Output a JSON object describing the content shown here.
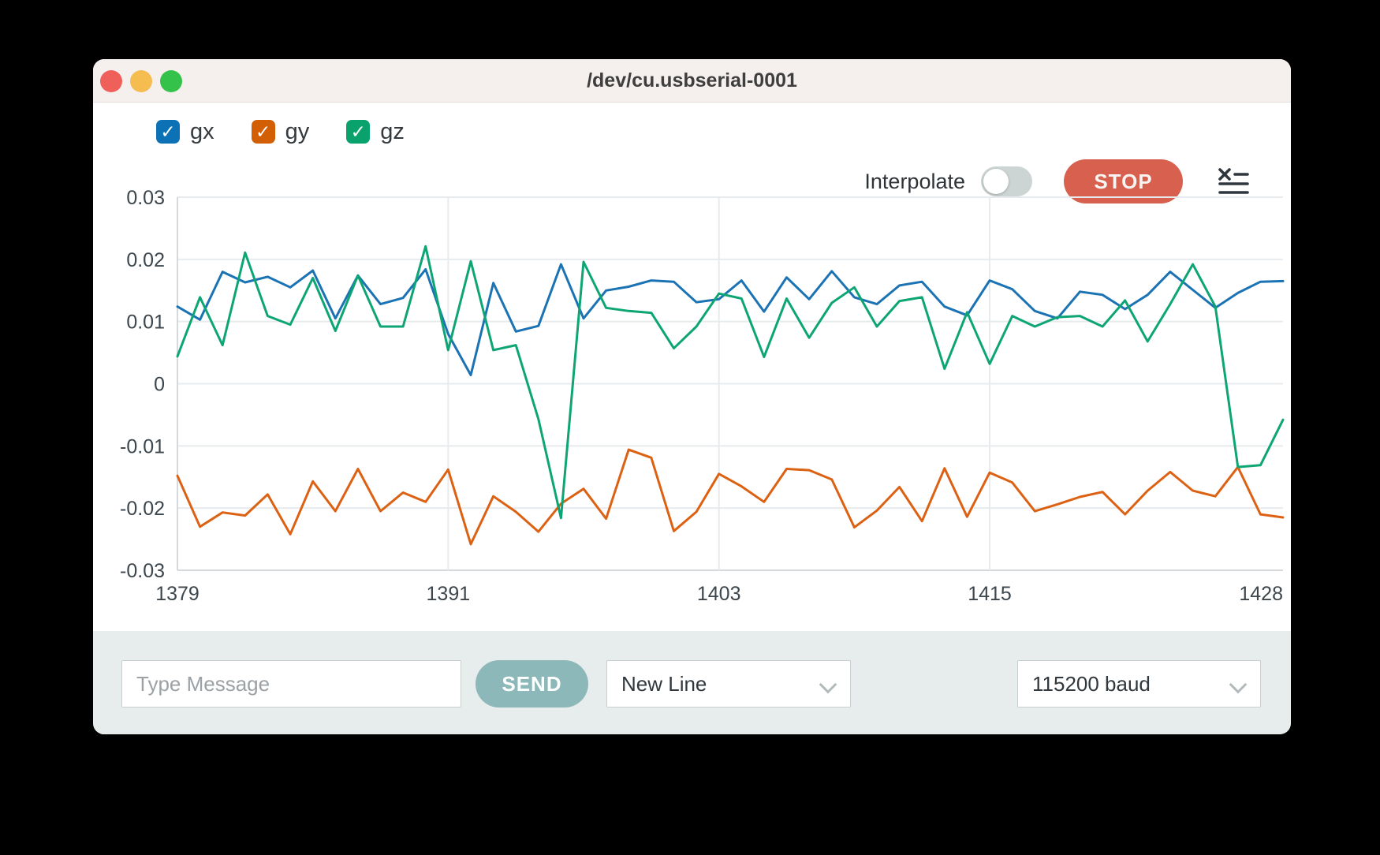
{
  "window": {
    "title": "/dev/cu.usbserial-0001"
  },
  "traffic_lights": {
    "close_color": "#f0605a",
    "minimize_color": "#f5bd4f",
    "zoom_color": "#35c24b"
  },
  "legend": [
    {
      "label": "gx",
      "checked": true,
      "color": "#0d72b5"
    },
    {
      "label": "gy",
      "checked": true,
      "color": "#d35f04"
    },
    {
      "label": "gz",
      "checked": true,
      "color": "#09a26c"
    }
  ],
  "toolbar": {
    "interpolate_label": "Interpolate",
    "interpolate_on": false,
    "stop_label": "STOP",
    "stop_color": "#d8604e"
  },
  "bottom_bar": {
    "message_placeholder": "Type Message",
    "send_label": "SEND",
    "send_color": "#8db8b9",
    "line_ending_selected": "New Line",
    "baud_rate_selected": "115200 baud"
  },
  "chart_data": {
    "type": "line",
    "title": "",
    "xlabel": "",
    "ylabel": "",
    "grid": true,
    "legend_position": "top-left",
    "xlim": [
      1379,
      1428
    ],
    "ylim": [
      -0.03,
      0.03
    ],
    "x_ticks": [
      1379,
      1391,
      1403,
      1415,
      1428
    ],
    "x_tick_labels": [
      "1379",
      "1391",
      "1403",
      "1415",
      "1428"
    ],
    "y_ticks": [
      0.03,
      0.02,
      0.01,
      0,
      -0.01,
      -0.02,
      -0.03
    ],
    "y_tick_labels": [
      "0.03",
      "0.02",
      "0.01",
      "0",
      "-0.01",
      "-0.02",
      "-0.03"
    ],
    "x": [
      1379,
      1380,
      1381,
      1382,
      1383,
      1384,
      1385,
      1386,
      1387,
      1388,
      1389,
      1390,
      1391,
      1392,
      1393,
      1394,
      1395,
      1396,
      1397,
      1398,
      1399,
      1400,
      1401,
      1402,
      1403,
      1404,
      1405,
      1406,
      1407,
      1408,
      1409,
      1410,
      1411,
      1412,
      1413,
      1414,
      1415,
      1416,
      1417,
      1418,
      1419,
      1420,
      1421,
      1422,
      1423,
      1424,
      1425,
      1426,
      1427,
      1428
    ],
    "series": [
      {
        "name": "gx",
        "color": "#1b73b4",
        "values": [
          0.0124,
          0.0103,
          0.018,
          0.0163,
          0.0172,
          0.0155,
          0.0182,
          0.0105,
          0.0174,
          0.0128,
          0.0138,
          0.0184,
          0.008,
          0.0014,
          0.0162,
          0.0084,
          0.0093,
          0.0192,
          0.0105,
          0.015,
          0.0156,
          0.0166,
          0.0164,
          0.0131,
          0.0136,
          0.0166,
          0.0116,
          0.0171,
          0.0136,
          0.0181,
          0.0139,
          0.0128,
          0.0158,
          0.0164,
          0.0124,
          0.011,
          0.0166,
          0.0152,
          0.0117,
          0.0105,
          0.0148,
          0.0143,
          0.012,
          0.0143,
          0.018,
          0.0151,
          0.0122,
          0.0146,
          0.0164,
          0.0165
        ]
      },
      {
        "name": "gy",
        "color": "#dc6113",
        "values": [
          -0.0148,
          -0.023,
          -0.0207,
          -0.0212,
          -0.0178,
          -0.0242,
          -0.0157,
          -0.0205,
          -0.0137,
          -0.0205,
          -0.0175,
          -0.019,
          -0.0138,
          -0.0258,
          -0.0181,
          -0.0206,
          -0.0238,
          -0.0193,
          -0.0169,
          -0.0217,
          -0.0106,
          -0.0119,
          -0.0237,
          -0.0206,
          -0.0145,
          -0.0165,
          -0.019,
          -0.0137,
          -0.0139,
          -0.0154,
          -0.0231,
          -0.0204,
          -0.0166,
          -0.0221,
          -0.0136,
          -0.0214,
          -0.0143,
          -0.0159,
          -0.0205,
          -0.0194,
          -0.0182,
          -0.0174,
          -0.021,
          -0.0172,
          -0.0142,
          -0.0172,
          -0.0181,
          -0.0134,
          -0.021,
          -0.0215
        ]
      },
      {
        "name": "gz",
        "color": "#0ea575",
        "values": [
          0.0044,
          0.0139,
          0.0062,
          0.0211,
          0.0109,
          0.0095,
          0.017,
          0.0085,
          0.0174,
          0.0092,
          0.0092,
          0.0221,
          0.0054,
          0.0197,
          0.0054,
          0.0062,
          -0.0057,
          -0.0216,
          0.0196,
          0.0122,
          0.0117,
          0.0114,
          0.0057,
          0.0092,
          0.0145,
          0.0137,
          0.0043,
          0.0137,
          0.0074,
          0.013,
          0.0155,
          0.0092,
          0.0133,
          0.0139,
          0.0024,
          0.0115,
          0.0032,
          0.0109,
          0.0092,
          0.0107,
          0.0109,
          0.0092,
          0.0134,
          0.0068,
          0.0128,
          0.0192,
          0.0124,
          -0.0134,
          -0.0131,
          -0.0058
        ]
      }
    ]
  }
}
